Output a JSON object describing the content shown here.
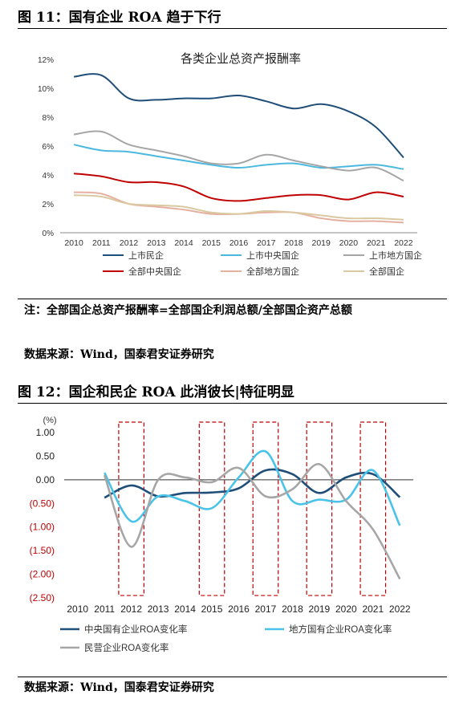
{
  "figures": {
    "fig11_title": "图 11：国有企业 ROA 趋于下行",
    "fig12_title": "图 12：国企和民企 ROA 此消彼长|特征明显"
  },
  "notes": {
    "note1": "注：全部国企总资产报酬率=全部国企利润总额/全部国企资产总额",
    "source1": "数据来源：Wind，国泰君安证券研究",
    "source2": "数据来源：Wind，国泰君安证券研究"
  },
  "chart_data": [
    {
      "type": "line",
      "title": "各类企业总资产报酬率",
      "x": [
        2010,
        2011,
        2012,
        2013,
        2014,
        2015,
        2016,
        2017,
        2018,
        2019,
        2020,
        2021,
        2022
      ],
      "y_ticks": [
        "0%",
        "2%",
        "4%",
        "6%",
        "8%",
        "10%",
        "12%"
      ],
      "ylim": [
        0,
        12
      ],
      "legend_position": "bottom",
      "series": [
        {
          "name": "上市民企",
          "color": "#1f4e79",
          "values": [
            10.8,
            10.9,
            9.3,
            9.2,
            9.3,
            9.3,
            9.5,
            9.1,
            8.6,
            8.9,
            8.4,
            7.3,
            5.2
          ]
        },
        {
          "name": "上市中央国企",
          "color": "#4bb8e0",
          "values": [
            6.1,
            5.7,
            5.6,
            5.3,
            5.0,
            4.7,
            4.5,
            4.7,
            4.8,
            4.5,
            4.6,
            4.7,
            4.4
          ]
        },
        {
          "name": "上市地方国企",
          "color": "#a6a6a6",
          "values": [
            6.8,
            7.0,
            6.1,
            5.7,
            5.3,
            4.8,
            4.8,
            5.4,
            5.0,
            4.6,
            4.3,
            4.5,
            3.6
          ]
        },
        {
          "name": "全部中央国企",
          "color": "#c00000",
          "values": [
            4.1,
            3.9,
            3.5,
            3.5,
            3.2,
            2.4,
            2.2,
            2.4,
            2.6,
            2.6,
            2.3,
            2.8,
            2.5
          ]
        },
        {
          "name": "全部地方国企",
          "color": "#e6b0a0",
          "values": [
            2.8,
            2.7,
            2.0,
            1.8,
            1.6,
            1.3,
            1.3,
            1.4,
            1.4,
            1.0,
            0.8,
            0.8,
            0.7
          ]
        },
        {
          "name": "全部国企",
          "color": "#d9c8a0",
          "values": [
            2.6,
            2.5,
            2.0,
            1.9,
            1.8,
            1.4,
            1.3,
            1.5,
            1.4,
            1.2,
            1.0,
            1.0,
            0.9
          ]
        }
      ]
    },
    {
      "type": "line",
      "unit_label": "(%)",
      "x": [
        2010,
        2011,
        2012,
        2013,
        2014,
        2015,
        2016,
        2017,
        2018,
        2019,
        2020,
        2021,
        2022
      ],
      "y_ticks": [
        "1.00",
        "0.50",
        "0.00",
        "(0.50)",
        "(1.00)",
        "(1.50)",
        "(2.00)",
        "(2.50)"
      ],
      "ylim": [
        -2.5,
        1.0
      ],
      "legend_position": "bottom",
      "highlight_years": [
        2012,
        2015,
        2017,
        2019,
        2021
      ],
      "series": [
        {
          "name": "中央国有企业ROA变化率",
          "color": "#1f4e79",
          "x": [
            2011,
            2012,
            2013,
            2014,
            2015,
            2016,
            2017,
            2018,
            2019,
            2020,
            2021,
            2022
          ],
          "values": [
            -0.38,
            -0.12,
            -0.35,
            -0.28,
            -0.27,
            -0.18,
            0.2,
            0.12,
            -0.28,
            0.05,
            0.12,
            -0.37
          ]
        },
        {
          "name": "地方国有企业ROA变化率",
          "color": "#4bc3e8",
          "x": [
            2011,
            2012,
            2013,
            2014,
            2015,
            2016,
            2017,
            2018,
            2019,
            2020,
            2021,
            2022
          ],
          "values": [
            0.15,
            -0.88,
            -0.35,
            -0.45,
            -0.6,
            0.05,
            0.6,
            -0.45,
            -0.42,
            -0.42,
            0.2,
            -0.97
          ]
        },
        {
          "name": "民营企业ROA变化率",
          "color": "#a6a6a6",
          "x": [
            2011,
            2012,
            2013,
            2014,
            2015,
            2016,
            2017,
            2018,
            2019,
            2020,
            2021,
            2022
          ],
          "values": [
            0.1,
            -1.42,
            0.0,
            0.05,
            -0.05,
            0.25,
            -0.35,
            -0.2,
            0.33,
            -0.45,
            -1.05,
            -2.1
          ]
        }
      ]
    }
  ]
}
